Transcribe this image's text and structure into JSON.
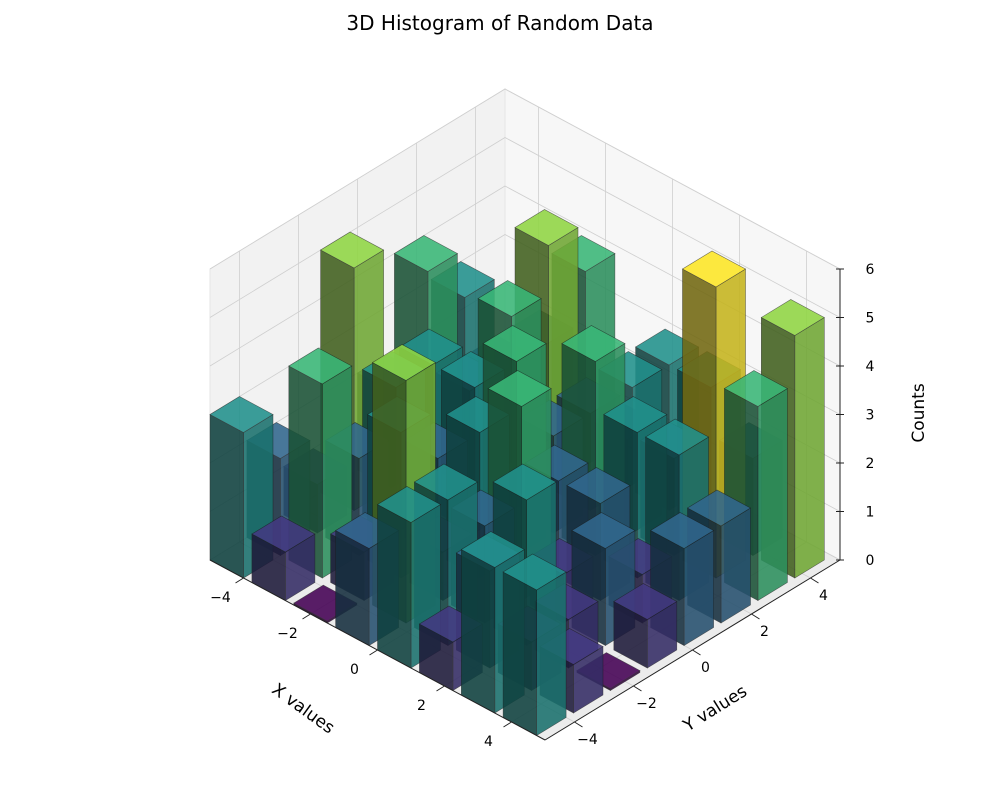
{
  "chart_data": {
    "type": "bar3d",
    "title": "3D Histogram of Random Data",
    "xlabel": "X values",
    "ylabel": "Y values",
    "zlabel": "Counts",
    "x_ticks": [
      "−4",
      "−2",
      "0",
      "2",
      "4"
    ],
    "y_ticks": [
      "−4",
      "−2",
      "0",
      "2",
      "4"
    ],
    "z_ticks": [
      "0",
      "1",
      "2",
      "3",
      "4",
      "5",
      "6"
    ],
    "xlim": [
      -5,
      5
    ],
    "ylim": [
      -5,
      5
    ],
    "zlim": [
      0,
      6
    ],
    "bin_edges": [
      -5,
      -3.75,
      -2.5,
      -1.25,
      0,
      1.25,
      2.5,
      3.75,
      5
    ],
    "counts": [
      [
        3,
        2,
        1,
        5,
        2,
        4,
        3,
        1
      ],
      [
        1,
        4,
        2,
        3,
        3,
        2,
        1,
        2
      ],
      [
        0,
        1,
        3,
        2,
        3,
        4,
        5,
        4
      ],
      [
        2,
        5,
        1,
        3,
        4,
        2,
        2,
        1
      ],
      [
        3,
        3,
        2,
        4,
        2,
        4,
        3,
        3
      ],
      [
        1,
        2,
        3,
        1,
        2,
        3,
        2,
        3
      ],
      [
        3,
        1,
        1,
        2,
        1,
        3,
        6,
        2
      ],
      [
        3,
        1,
        0,
        1,
        2,
        2,
        4,
        5
      ]
    ],
    "colormap": "viridis",
    "grid": true
  }
}
